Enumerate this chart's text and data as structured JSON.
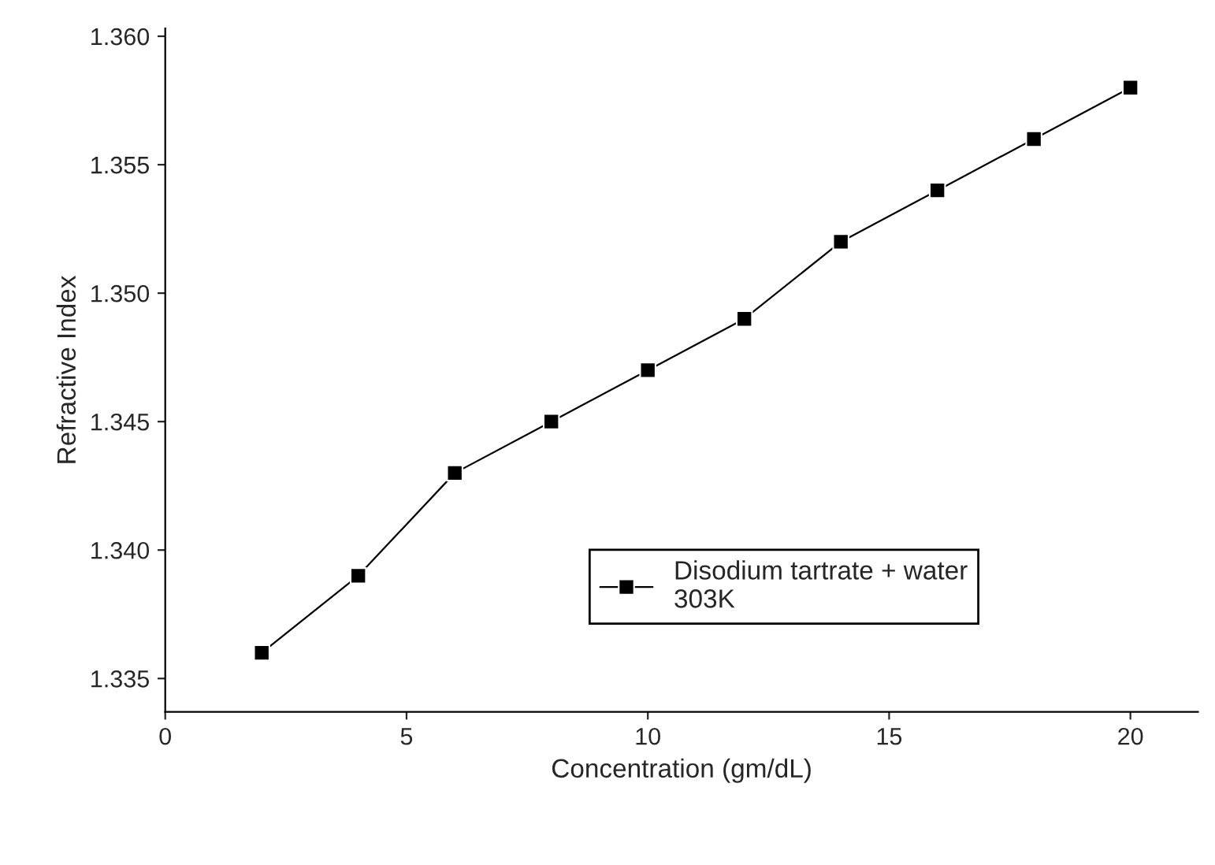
{
  "chart_data": {
    "type": "line",
    "xlabel": "Concentration (gm/dL)",
    "ylabel": "Refractive Index",
    "x": [
      2,
      4,
      6,
      8,
      10,
      12,
      14,
      16,
      18,
      20
    ],
    "series": [
      {
        "name": "Disodium tartrate + water\n303K",
        "color": "#000000",
        "values": [
          1.336,
          1.339,
          1.343,
          1.345,
          1.347,
          1.349,
          1.352,
          1.354,
          1.356,
          1.358
        ]
      }
    ],
    "xlim": [
      0,
      21.4
    ],
    "xticks": [
      0,
      5,
      10,
      15,
      20
    ],
    "ylim": [
      1.3337,
      1.3603
    ],
    "yticks": [
      {
        "value": 1.335,
        "label": "1.335"
      },
      {
        "value": 1.34,
        "label": "1.340"
      },
      {
        "value": 1.345,
        "label": "1.345"
      },
      {
        "value": 1.35,
        "label": "1.350"
      },
      {
        "value": 1.355,
        "label": "1.355"
      },
      {
        "value": 1.36,
        "label": "1.360"
      }
    ],
    "marker": "square",
    "line_style": "solid",
    "grid": false,
    "legend": "bottom right"
  }
}
